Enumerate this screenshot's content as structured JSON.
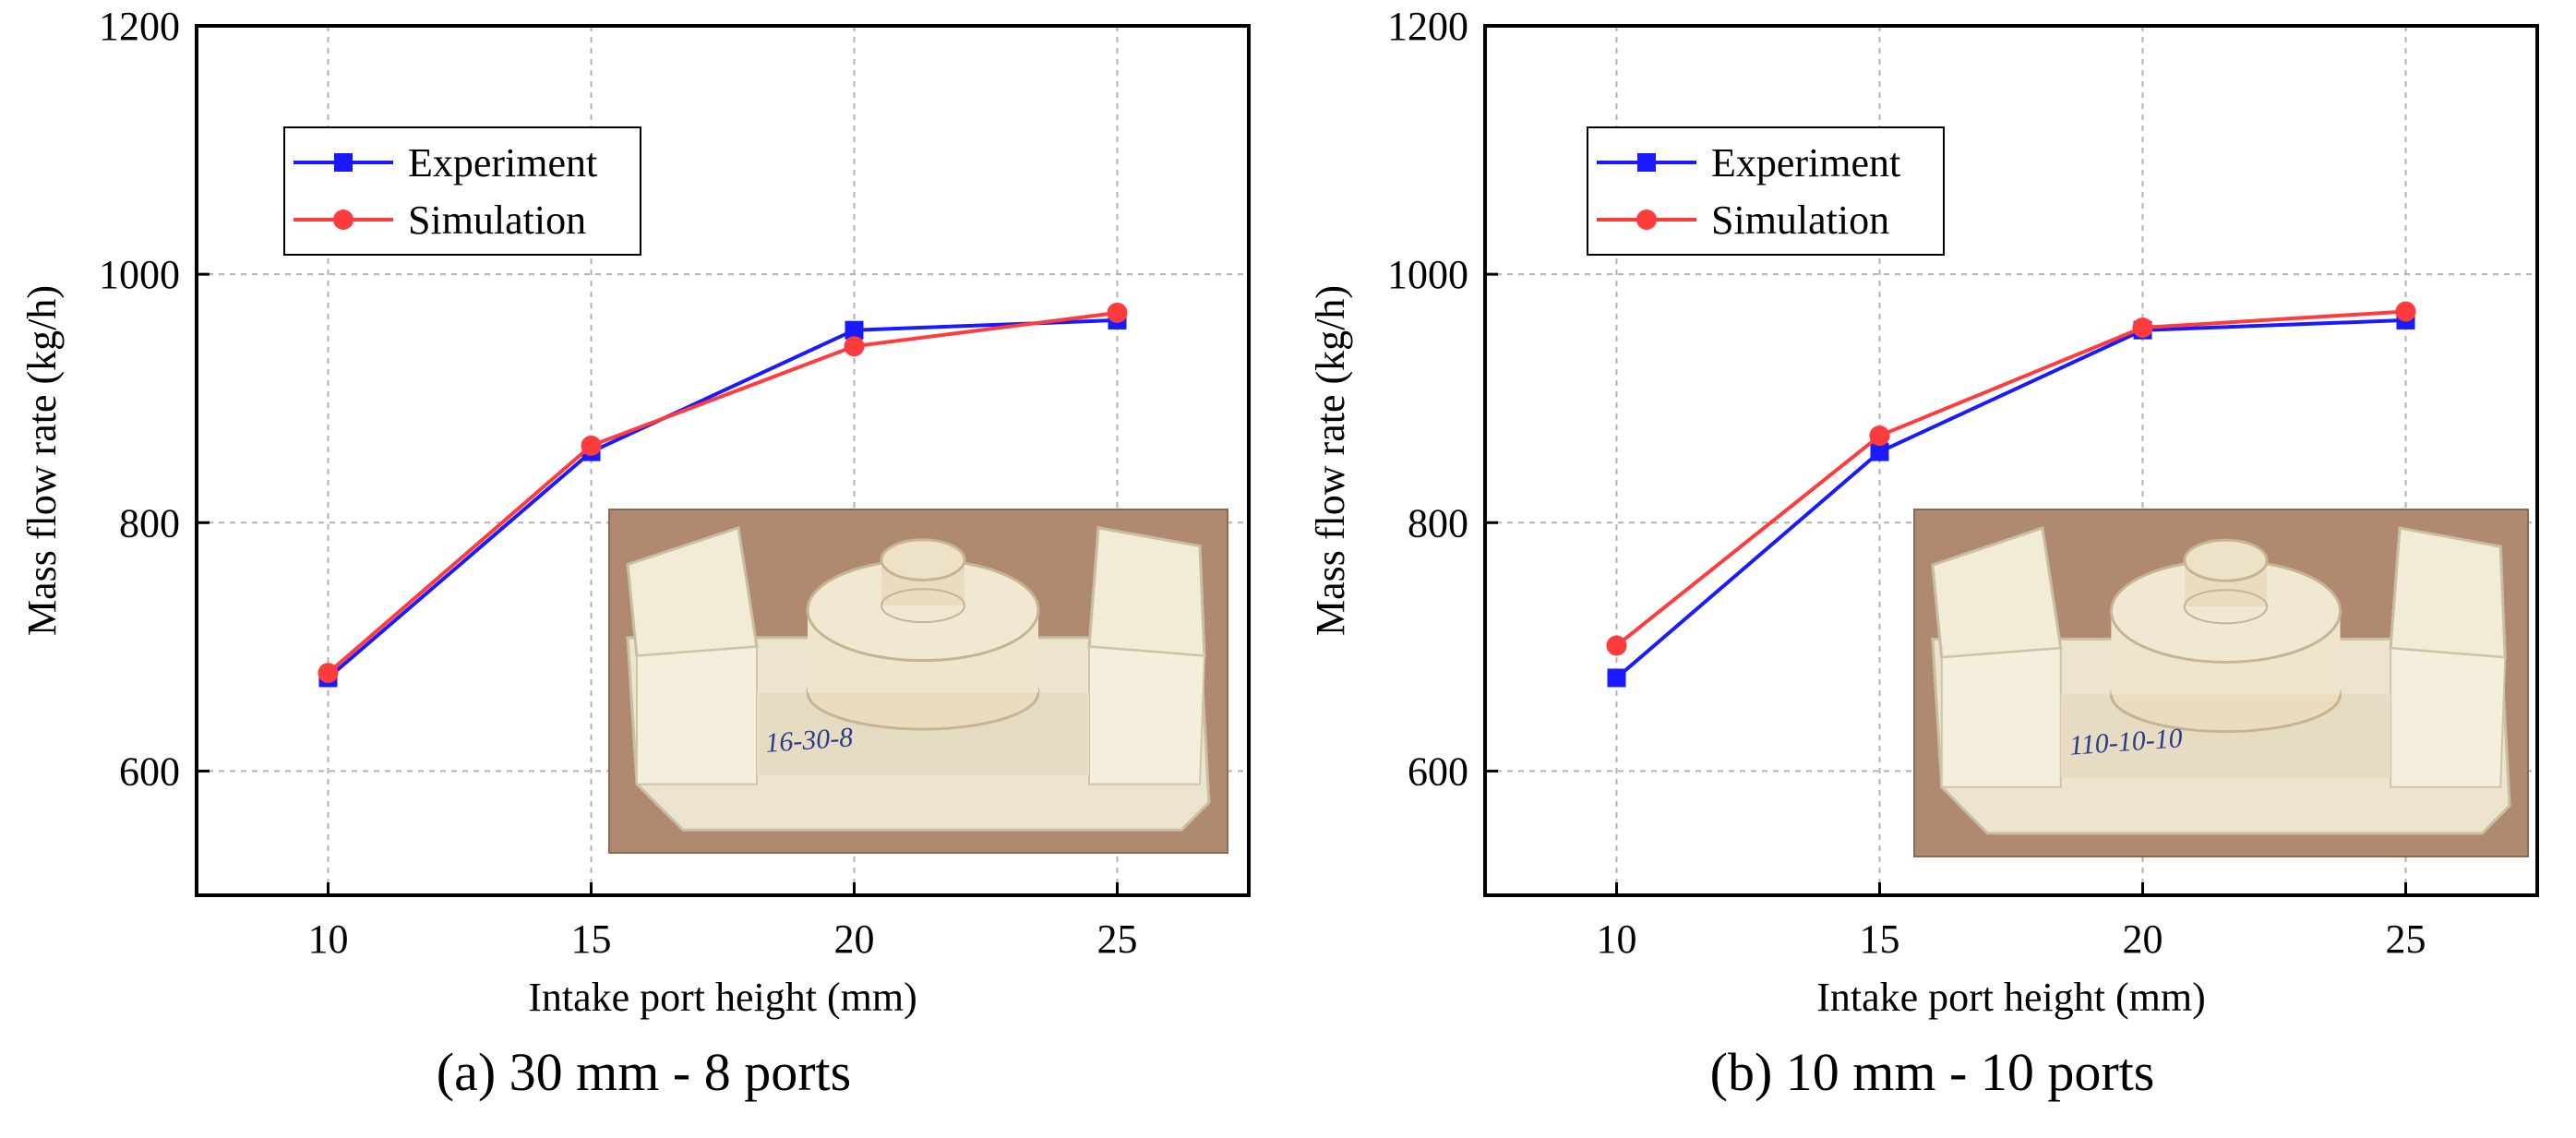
{
  "chart_data": [
    {
      "type": "line",
      "caption": "(a) 30 mm - 8 ports",
      "xlabel": "Intake port height (mm)",
      "ylabel": "Mass flow rate (kg/h)",
      "x": [
        10,
        15,
        20,
        25
      ],
      "xticks": [
        10,
        15,
        20,
        25
      ],
      "xlim": [
        7.5,
        27.5
      ],
      "yticks": [
        600,
        800,
        1000,
        1200
      ],
      "ylim": [
        500,
        1200
      ],
      "grid": true,
      "legend_position": "top-left",
      "inset": "photo of 3D-printed intake port model labelled 16-30-8",
      "series": [
        {
          "name": "Experiment",
          "values": [
            675,
            857,
            955,
            963
          ],
          "color": "#1a1aff",
          "marker": "square"
        },
        {
          "name": "Simulation",
          "values": [
            679,
            862,
            942,
            969
          ],
          "color": "#ff3b3b",
          "marker": "circle"
        }
      ]
    },
    {
      "type": "line",
      "caption": "(b) 10 mm - 10 ports",
      "xlabel": "Intake port height (mm)",
      "ylabel": "Mass flow rate (kg/h)",
      "x": [
        10,
        15,
        20,
        25
      ],
      "xticks": [
        10,
        15,
        20,
        25
      ],
      "xlim": [
        7.5,
        27.5
      ],
      "yticks": [
        600,
        800,
        1000,
        1200
      ],
      "ylim": [
        500,
        1200
      ],
      "grid": true,
      "legend_position": "top-left",
      "inset": "photo of 3D-printed intake port model labelled 110-10-10",
      "series": [
        {
          "name": "Experiment",
          "values": [
            675,
            857,
            955,
            963
          ],
          "color": "#1a1aff",
          "marker": "square"
        },
        {
          "name": "Simulation",
          "values": [
            701,
            870,
            957,
            970
          ],
          "color": "#ff3b3b",
          "marker": "circle"
        }
      ]
    }
  ]
}
